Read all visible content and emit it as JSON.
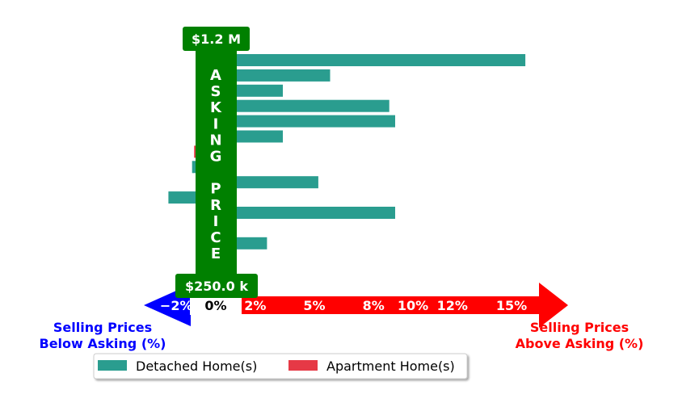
{
  "chart_data": {
    "type": "bar",
    "orientation": "horizontal",
    "x_unit": "percent over asking",
    "xlim": [
      -3,
      17.8
    ],
    "tick_values": [
      -2,
      0,
      2,
      5,
      8,
      10,
      12,
      15
    ],
    "tick_labels": [
      "−2%",
      "0%",
      "2%",
      "5%",
      "8%",
      "10%",
      "12%",
      "15%"
    ],
    "colors": {
      "detached": "#2a9d8f",
      "apartment": "#e63946",
      "asking": "#008000",
      "below": "#0000ff",
      "above": "#ff0000"
    },
    "series": [
      {
        "name": "Detached Home(s)",
        "values": [
          15.7,
          5.8,
          3.4,
          8.8,
          9.1,
          3.4,
          null,
          -1.2,
          5.2,
          -2.4,
          9.1,
          1.0,
          2.6,
          1.0,
          0.9
        ]
      },
      {
        "name": "Apartment Home(s)",
        "values": [
          null,
          null,
          null,
          null,
          null,
          null,
          -1.1,
          null,
          null,
          null,
          null,
          null,
          null,
          null,
          0.5
        ]
      }
    ],
    "asking_band": {
      "letters": [
        "A",
        "S",
        "K",
        "I",
        "N",
        "G",
        "",
        "P",
        "R",
        "I",
        "C",
        "E"
      ],
      "top_label": "$1.2 M",
      "bottom_label": "$250.0 k"
    },
    "below_label": [
      "Selling Prices",
      "Below Asking (%)"
    ],
    "above_label": [
      "Selling Prices",
      "Above Asking (%)"
    ],
    "legend": {
      "position": "bottom",
      "items": [
        {
          "label": "Detached Home(s)",
          "color": "#2a9d8f"
        },
        {
          "label": "Apartment Home(s)",
          "color": "#e63946"
        }
      ]
    }
  }
}
